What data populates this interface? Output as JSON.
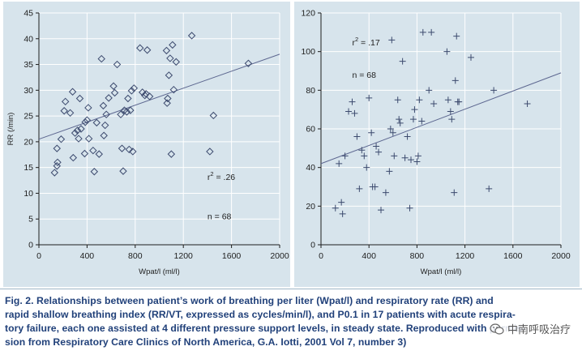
{
  "colors": {
    "plot_bg": "#d7e4ec",
    "marker": "#3c4a6e",
    "regression": "#5d6790",
    "caption_text": "#21417a"
  },
  "chart_data": [
    {
      "type": "scatter",
      "marker": "diamond",
      "xlabel": "Wpat/l (ml/l)",
      "ylabel": "RR (/min)",
      "xlim": [
        0,
        2000
      ],
      "ylim": [
        0,
        45
      ],
      "x_ticks": [
        "0",
        "400",
        "800",
        "1200",
        "1600",
        "2000"
      ],
      "y_ticks": [
        "0",
        "5",
        "10",
        "15",
        "20",
        "25",
        "30",
        "35",
        "40",
        "45"
      ],
      "annotation_r2_prefix": "r",
      "annotation_r2_sup": "2",
      "annotation_r2_value": " = .26",
      "annotation_n": "n = 68",
      "regression": {
        "x0": 0,
        "y0": 20.5,
        "x1": 2000,
        "y1": 37.0
      },
      "points": [
        [
          130,
          14
        ],
        [
          150,
          15.3
        ],
        [
          155,
          16
        ],
        [
          150,
          18.7
        ],
        [
          185,
          20.5
        ],
        [
          210,
          26
        ],
        [
          220,
          27.8
        ],
        [
          260,
          25.6
        ],
        [
          280,
          29.7
        ],
        [
          285,
          16.9
        ],
        [
          300,
          21.7
        ],
        [
          320,
          22.2
        ],
        [
          330,
          20.6
        ],
        [
          340,
          28.4
        ],
        [
          350,
          22.5
        ],
        [
          380,
          17.7
        ],
        [
          385,
          23.8
        ],
        [
          400,
          24.2
        ],
        [
          410,
          26.6
        ],
        [
          415,
          20.6
        ],
        [
          450,
          18.3
        ],
        [
          460,
          14.2
        ],
        [
          480,
          23.7
        ],
        [
          500,
          17.6
        ],
        [
          520,
          36.1
        ],
        [
          535,
          27
        ],
        [
          540,
          21.2
        ],
        [
          550,
          23.2
        ],
        [
          560,
          25.3
        ],
        [
          580,
          28.5
        ],
        [
          620,
          30.8
        ],
        [
          630,
          29.5
        ],
        [
          650,
          35
        ],
        [
          680,
          25.3
        ],
        [
          690,
          18.7
        ],
        [
          700,
          14.3
        ],
        [
          710,
          26.1
        ],
        [
          730,
          25.8
        ],
        [
          740,
          28.4
        ],
        [
          750,
          18.5
        ],
        [
          760,
          26.1
        ],
        [
          770,
          29.9
        ],
        [
          780,
          18.1
        ],
        [
          790,
          30.4
        ],
        [
          840,
          38.2
        ],
        [
          860,
          29.6
        ],
        [
          880,
          29
        ],
        [
          890,
          29.3
        ],
        [
          900,
          37.8
        ],
        [
          920,
          28.8
        ],
        [
          1060,
          37.7
        ],
        [
          1065,
          27.5
        ],
        [
          1070,
          28.4
        ],
        [
          1080,
          32.9
        ],
        [
          1090,
          36.2
        ],
        [
          1100,
          17.6
        ],
        [
          1110,
          38.8
        ],
        [
          1120,
          30.1
        ],
        [
          1140,
          35.5
        ],
        [
          1270,
          40.6
        ],
        [
          1420,
          18.1
        ],
        [
          1450,
          25.1
        ],
        [
          1740,
          35.2
        ]
      ]
    },
    {
      "type": "scatter",
      "marker": "plus",
      "xlabel": "Wpat/l (ml/l)",
      "ylabel": "",
      "xlim": [
        0,
        2000
      ],
      "ylim": [
        0,
        120
      ],
      "x_ticks": [
        "0",
        "400",
        "800",
        "1200",
        "1600",
        "2000"
      ],
      "y_ticks": [
        "0",
        "20",
        "40",
        "60",
        "80",
        "100",
        "120"
      ],
      "annotation_r2_prefix": "r",
      "annotation_r2_sup": "2",
      "annotation_r2_value": " = .17",
      "annotation_n": "n = 68",
      "regression": {
        "x0": 0,
        "y0": 42,
        "x1": 2000,
        "y1": 89
      },
      "points": [
        [
          120,
          19
        ],
        [
          150,
          42
        ],
        [
          170,
          22
        ],
        [
          180,
          16
        ],
        [
          200,
          46
        ],
        [
          230,
          69
        ],
        [
          260,
          74
        ],
        [
          280,
          68
        ],
        [
          300,
          56
        ],
        [
          320,
          29
        ],
        [
          340,
          49
        ],
        [
          360,
          46
        ],
        [
          380,
          40
        ],
        [
          400,
          76
        ],
        [
          420,
          58
        ],
        [
          430,
          30
        ],
        [
          450,
          30
        ],
        [
          460,
          51
        ],
        [
          480,
          48
        ],
        [
          500,
          18
        ],
        [
          540,
          27
        ],
        [
          570,
          38
        ],
        [
          580,
          60
        ],
        [
          590,
          106
        ],
        [
          600,
          58
        ],
        [
          610,
          46
        ],
        [
          640,
          75
        ],
        [
          650,
          65
        ],
        [
          660,
          63
        ],
        [
          680,
          95
        ],
        [
          700,
          45
        ],
        [
          720,
          56
        ],
        [
          740,
          19
        ],
        [
          750,
          44
        ],
        [
          770,
          65
        ],
        [
          780,
          70
        ],
        [
          800,
          43
        ],
        [
          810,
          46
        ],
        [
          820,
          75
        ],
        [
          840,
          64
        ],
        [
          850,
          110
        ],
        [
          900,
          80
        ],
        [
          920,
          110
        ],
        [
          940,
          73
        ],
        [
          1050,
          100
        ],
        [
          1060,
          75
        ],
        [
          1080,
          69
        ],
        [
          1090,
          65
        ],
        [
          1110,
          27
        ],
        [
          1120,
          85
        ],
        [
          1130,
          108
        ],
        [
          1140,
          74
        ],
        [
          1150,
          74
        ],
        [
          1250,
          97
        ],
        [
          1400,
          29
        ],
        [
          1440,
          80
        ],
        [
          1720,
          73
        ]
      ]
    }
  ],
  "caption": {
    "lines": [
      "Fig. 2. Relationships between patient’s work of breathing per liter (Wpat/l) and respiratory rate (RR) and",
      "rapid shallow breathing index (RR/VT, expressed as cycles/min/l), and P0.1 in 17 patients with acute respira-",
      "tory failure, each one assisted at 4 different pressure support levels, in steady state. Reproduced with permis-",
      "sion from Respiratory Care Clinics of North America, G.A. Iotti, 2001 Vol 7, number 3)"
    ]
  },
  "watermark": {
    "icon": "wechat-icon",
    "text": "中南呼吸治疗"
  }
}
